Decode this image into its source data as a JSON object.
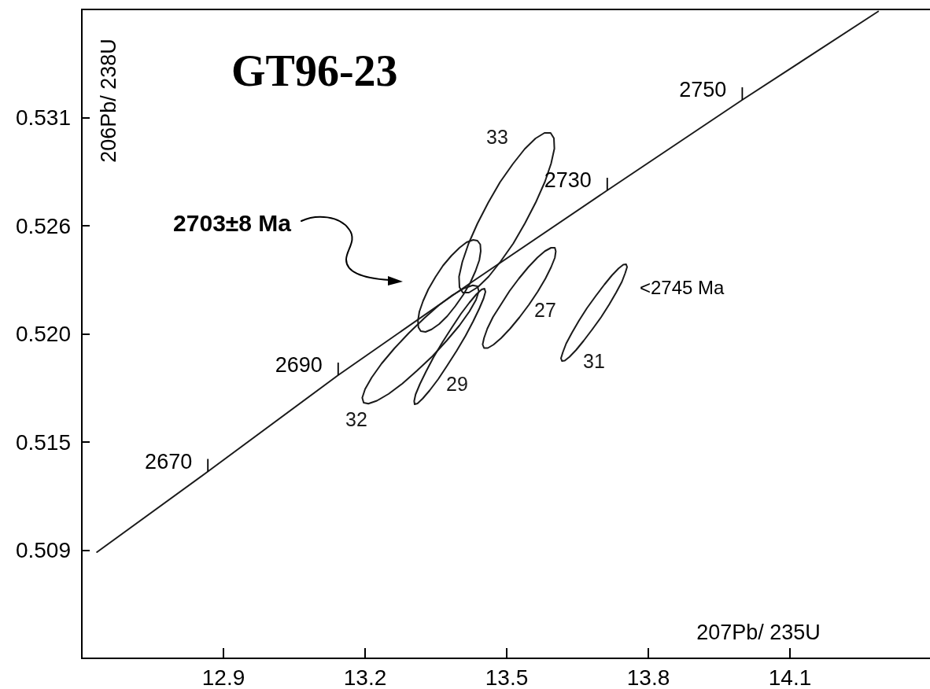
{
  "chart_data": {
    "type": "line",
    "title": "GT96-23",
    "xlabel": "207Pb/ 235U",
    "ylabel": "206Pb/ 238U",
    "xlim": [
      12.6,
      14.4
    ],
    "xticks": [
      12.9,
      13.2,
      13.5,
      13.8,
      14.1
    ],
    "ylim": [
      0.5035,
      0.5365
    ],
    "yticks": [
      0.509,
      {
        "value": 0.5145,
        "label": "0.515"
      },
      {
        "value": 0.52,
        "label": "0.520"
      },
      {
        "value": 0.5255,
        "label": "0.526"
      },
      0.531
    ],
    "series": [
      {
        "color": "#1a1a1a",
        "x": [
          12.632,
          12.867,
          13.143,
          13.43,
          13.713,
          13.999,
          14.287
        ],
        "values": [
          0.5089,
          0.513,
          0.5179,
          0.5227,
          0.5273,
          0.5319,
          0.5364
        ]
      },
      {
        "name": "33",
        "color": "#1a1a1a",
        "x": [
          13.399,
          13.406,
          13.419,
          13.438,
          13.461,
          13.486,
          13.513,
          13.538,
          13.561,
          13.58,
          13.593,
          13.6,
          13.601,
          null,
          13.399,
          13.4,
          13.407,
          13.42,
          13.439,
          13.462,
          13.487,
          13.514,
          13.539,
          13.562,
          13.581,
          13.594,
          13.601
        ],
        "values": [
          0.52291,
          0.52366,
          0.52458,
          0.52561,
          0.52668,
          0.52772,
          0.52864,
          0.5294,
          0.52994,
          0.53022,
          0.53022,
          0.52995,
          0.52942,
          null,
          0.52291,
          0.52237,
          0.5221,
          0.5221,
          0.52238,
          0.52292,
          0.52368,
          0.5246,
          0.52564,
          0.52671,
          0.52774,
          0.52866,
          0.52942
        ]
      },
      {
        "color": "#1a1a1a",
        "x": [
          13.312,
          13.315,
          13.323,
          13.334,
          13.349,
          13.365,
          13.383,
          13.4,
          13.415,
          13.429,
          13.438,
          13.444,
          13.445,
          null,
          13.312,
          13.313,
          13.318,
          13.328,
          13.341,
          13.357,
          13.374,
          13.391,
          13.408,
          13.423,
          13.434,
          13.442,
          13.445
        ],
        "values": [
          0.52067,
          0.52113,
          0.52168,
          0.52227,
          0.52289,
          0.52347,
          0.52398,
          0.52438,
          0.52466,
          0.52478,
          0.52474,
          0.52455,
          0.52421,
          null,
          0.52067,
          0.52033,
          0.52014,
          0.5201,
          0.52023,
          0.5205,
          0.5209,
          0.52141,
          0.52199,
          0.52261,
          0.5232,
          0.52375,
          0.52421
        ]
      },
      {
        "name": "32",
        "color": "#1a1a1a",
        "x": [
          13.194,
          13.2,
          13.214,
          13.235,
          13.262,
          13.293,
          13.325,
          13.356,
          13.385,
          13.41,
          13.428,
          13.438,
          13.441,
          null,
          13.194,
          13.197,
          13.207,
          13.225,
          13.25,
          13.279,
          13.31,
          13.343,
          13.373,
          13.4,
          13.421,
          13.435,
          13.441
        ],
        "values": [
          0.51675,
          0.51719,
          0.51778,
          0.51849,
          0.51926,
          0.52005,
          0.52079,
          0.52145,
          0.52197,
          0.52232,
          0.52247,
          0.52242,
          0.52217,
          null,
          0.51675,
          0.5165,
          0.51645,
          0.5166,
          0.51695,
          0.51747,
          0.51813,
          0.51887,
          0.51966,
          0.52043,
          0.52114,
          0.52173,
          0.52217
        ]
      },
      {
        "name": "29",
        "color": "#1a1a1a",
        "x": [
          13.304,
          13.307,
          13.316,
          13.329,
          13.345,
          13.364,
          13.384,
          13.403,
          13.421,
          13.436,
          13.447,
          13.453,
          13.455,
          null,
          13.304,
          13.305,
          13.311,
          13.322,
          13.337,
          13.355,
          13.374,
          13.394,
          13.413,
          13.429,
          13.442,
          13.451,
          13.455
        ],
        "values": [
          0.51658,
          0.51692,
          0.51744,
          0.51808,
          0.51881,
          0.51958,
          0.52033,
          0.52102,
          0.52159,
          0.52202,
          0.52226,
          0.5223,
          0.52214,
          null,
          0.51658,
          0.51642,
          0.51646,
          0.51671,
          0.51713,
          0.5177,
          0.51839,
          0.51914,
          0.51991,
          0.52064,
          0.52129,
          0.5218,
          0.52214
        ]
      },
      {
        "name": "27",
        "color": "#1a1a1a",
        "x": [
          13.449,
          13.452,
          13.459,
          13.471,
          13.488,
          13.506,
          13.526,
          13.546,
          13.565,
          13.581,
          13.594,
          13.602,
          13.604,
          null,
          13.449,
          13.452,
          13.46,
          13.472,
          13.488,
          13.507,
          13.527,
          13.547,
          13.566,
          13.582,
          13.594,
          13.602,
          13.604
        ],
        "values": [
          0.51946,
          0.51979,
          0.52027,
          0.52086,
          0.5215,
          0.52218,
          0.52282,
          0.5234,
          0.52388,
          0.52421,
          0.52438,
          0.52438,
          0.5242,
          null,
          0.51946,
          0.51928,
          0.51928,
          0.51945,
          0.51978,
          0.52026,
          0.52084,
          0.52148,
          0.52216,
          0.52281,
          0.52339,
          0.52387,
          0.5242
        ]
      },
      {
        "name": "31",
        "color": "#1a1a1a",
        "x": [
          13.615,
          13.619,
          13.626,
          13.638,
          13.653,
          13.67,
          13.689,
          13.707,
          13.723,
          13.737,
          13.747,
          13.753,
          13.755,
          null,
          13.615,
          13.617,
          13.623,
          13.633,
          13.647,
          13.663,
          13.681,
          13.7,
          13.717,
          13.732,
          13.744,
          13.751,
          13.755
        ],
        "values": [
          0.51876,
          0.51907,
          0.51951,
          0.52005,
          0.52067,
          0.52131,
          0.52194,
          0.52251,
          0.52298,
          0.52333,
          0.52352,
          0.52354,
          0.5234,
          null,
          0.51876,
          0.51862,
          0.51864,
          0.51883,
          0.51918,
          0.51965,
          0.52022,
          0.52085,
          0.52149,
          0.52211,
          0.52265,
          0.52309,
          0.5234
        ]
      }
    ],
    "annotations": [
      {
        "text": "2670",
        "x": 12.867,
        "y": 0.513
      },
      {
        "text": "2690",
        "x": 13.143,
        "y": 0.5179
      },
      {
        "text": "2730",
        "x": 13.713,
        "y": 0.5273
      },
      {
        "text": "2750",
        "x": 13.999,
        "y": 0.5319
      },
      "2703±8 Ma",
      "<2745 Ma"
    ]
  }
}
